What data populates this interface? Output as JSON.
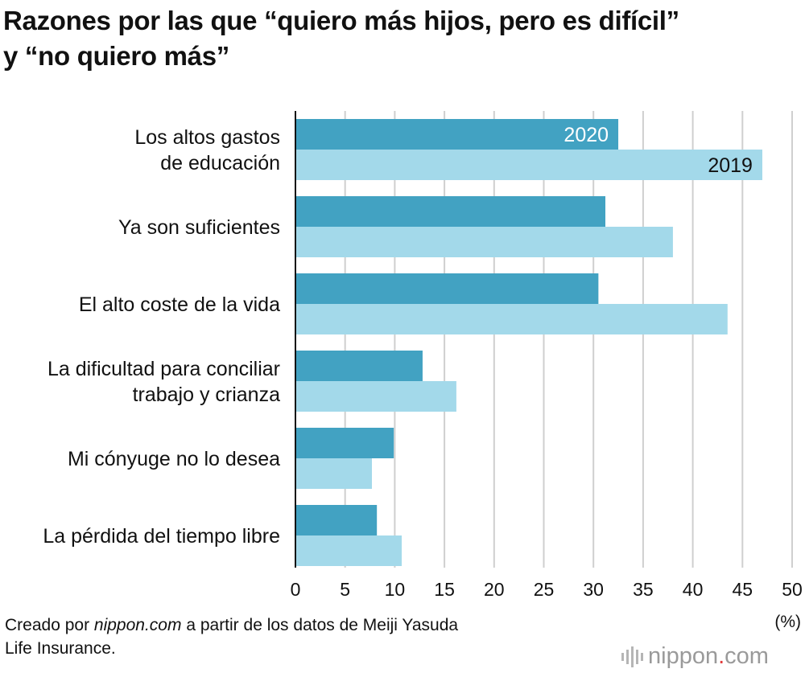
{
  "title": {
    "line1": "Razones por las que “quiero más hijos, pero es difícil”",
    "line2": "y “no quiero más”"
  },
  "chart_data": {
    "type": "bar",
    "orientation": "horizontal",
    "title": "Razones por las que “quiero más hijos, pero es difícil” y “no quiero más”",
    "categories": [
      [
        "Los altos gastos",
        "de educación"
      ],
      [
        "Ya son suficientes"
      ],
      [
        "El alto coste de la vida"
      ],
      [
        "La dificultad para conciliar",
        "trabajo y crianza"
      ],
      [
        "Mi cónyuge no lo desea"
      ],
      [
        "La pérdida del tiempo libre"
      ]
    ],
    "series": [
      {
        "name": "2020",
        "color": "#42a2c2",
        "label_color": "#ffffff",
        "values": [
          32.5,
          31.2,
          30.5,
          12.8,
          9.9,
          8.2
        ]
      },
      {
        "name": "2019",
        "color": "#a3d9ea",
        "label_color": "#111111",
        "values": [
          47.0,
          38.0,
          43.5,
          16.2,
          7.7,
          10.7
        ]
      }
    ],
    "x_ticks": [
      "0",
      "5",
      "10",
      "15",
      "20",
      "25",
      "30",
      "35",
      "40",
      "45",
      "50"
    ],
    "xlim": [
      0,
      50
    ],
    "unit_label": "(%)",
    "grid": true,
    "legend": "inline-first-category"
  },
  "source": {
    "prefix": "Creado por ",
    "site": "nippon.com",
    "suffix": " a partir de los datos de Meiji Yasuda",
    "line2": "Life Insurance."
  },
  "logo": {
    "name": "nippon",
    "dot": ".",
    "tld": "com"
  }
}
